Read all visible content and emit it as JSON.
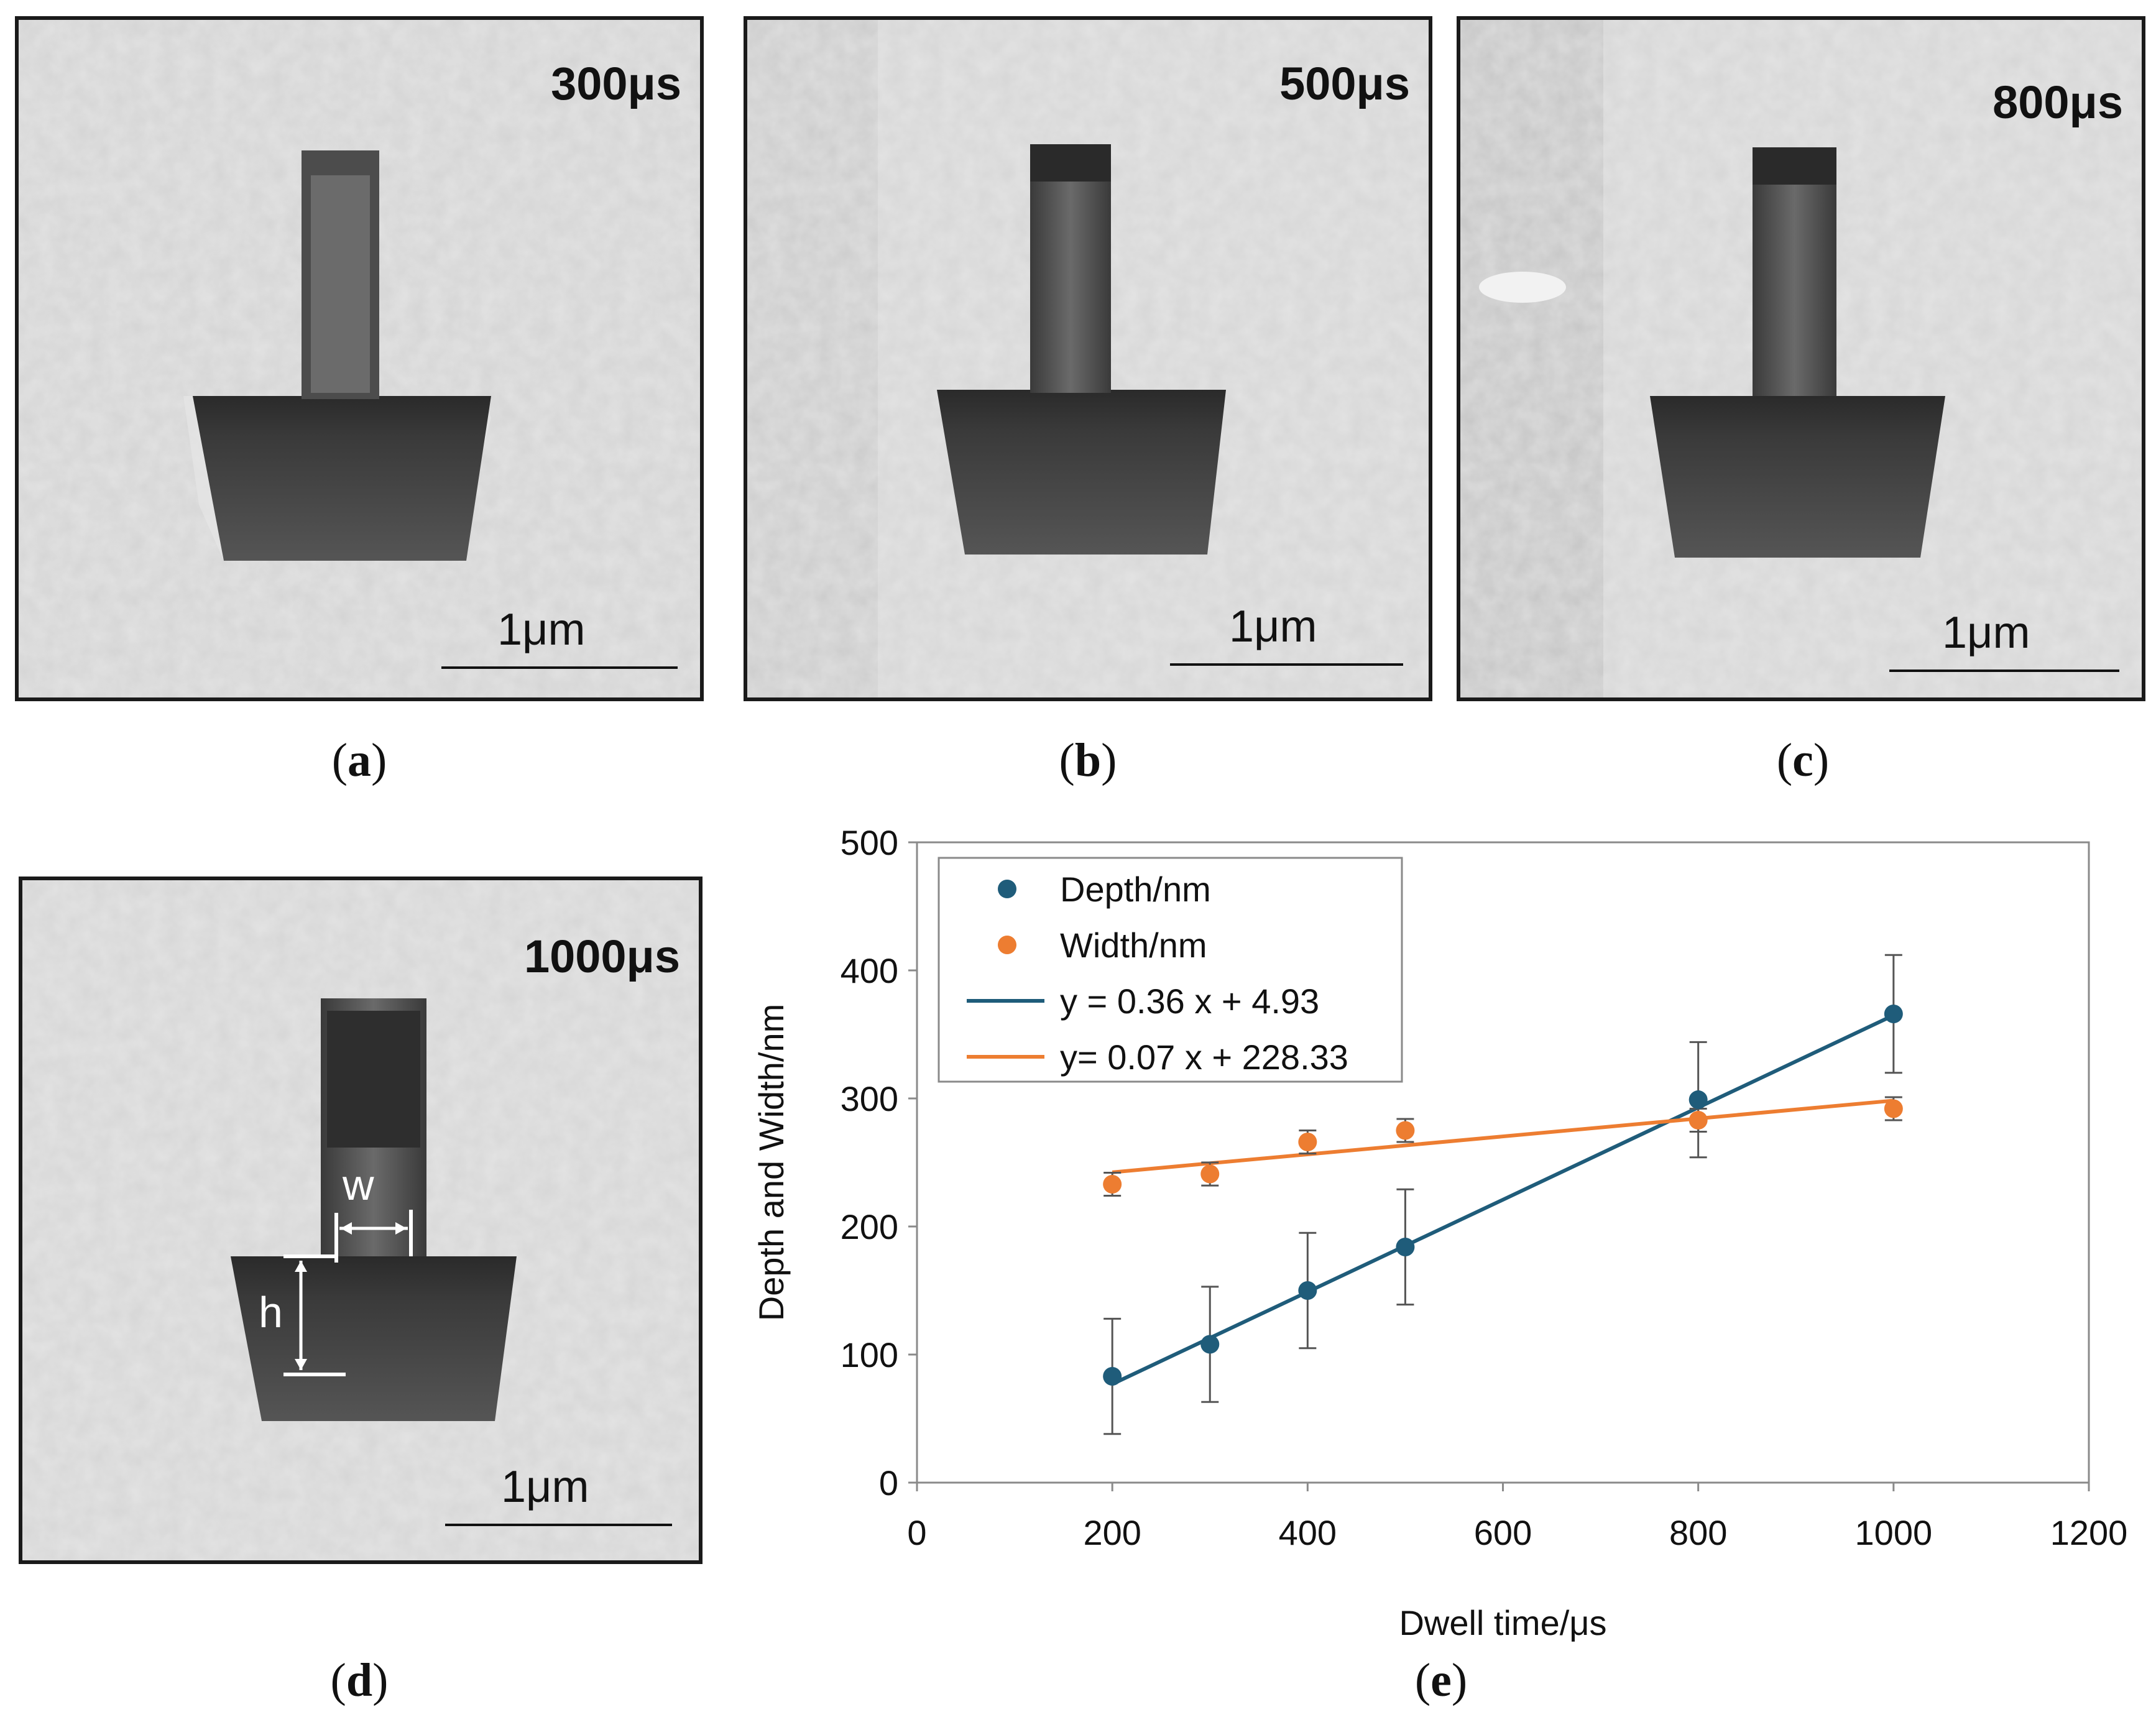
{
  "panels": [
    {
      "id": "a",
      "time_label": "300μs",
      "scale_label": "1μm",
      "caption": "a"
    },
    {
      "id": "b",
      "time_label": "500μs",
      "scale_label": "1μm",
      "caption": "b"
    },
    {
      "id": "c",
      "time_label": "800μs",
      "scale_label": "1μm",
      "caption": "c"
    },
    {
      "id": "d",
      "time_label": "1000μs",
      "scale_label": "1μm",
      "caption": "d",
      "annot_w": "w",
      "annot_h": "h"
    }
  ],
  "chart_caption": "e",
  "chart_data": {
    "type": "scatter",
    "xlabel": "Dwell time/μs",
    "ylabel": "Depth and Width/nm",
    "xlim": [
      0,
      1200
    ],
    "ylim": [
      0,
      500
    ],
    "xticks": [
      0,
      200,
      400,
      600,
      800,
      1000,
      1200
    ],
    "yticks": [
      0,
      100,
      200,
      300,
      400,
      500
    ],
    "grid": false,
    "legend_position": "top-left",
    "series": [
      {
        "name": "Depth/nm",
        "color": "#1f5c7a",
        "x": [
          200,
          300,
          400,
          500,
          800,
          1000
        ],
        "y": [
          83,
          108,
          150,
          184,
          299,
          366
        ],
        "err": [
          45,
          45,
          45,
          45,
          45,
          46
        ]
      },
      {
        "name": "Width/nm",
        "color": "#ed7d31",
        "x": [
          200,
          300,
          400,
          500,
          800,
          1000
        ],
        "y": [
          233,
          241,
          266,
          275,
          283,
          292
        ],
        "err": [
          9,
          9,
          9,
          9,
          9,
          9
        ]
      }
    ],
    "trendlines": [
      {
        "name": "y = 0.36 x + 4.93",
        "color": "#1f5c7a",
        "slope": 0.36,
        "intercept": 4.93,
        "x_range": [
          200,
          1000
        ]
      },
      {
        "name": "y= 0.07 x + 228.33",
        "color": "#ed7d31",
        "slope": 0.07,
        "intercept": 228.33,
        "x_range": [
          200,
          1000
        ]
      }
    ]
  }
}
